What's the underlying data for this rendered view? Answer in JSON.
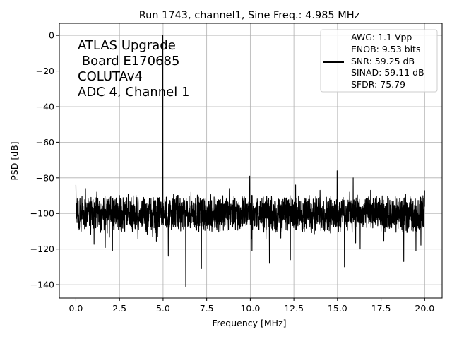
{
  "chart_data": {
    "type": "line",
    "title": "Run 1743, channel1, Sine Freq.: 4.985 MHz",
    "xlabel": "Frequency [MHz]",
    "ylabel": "PSD [dB]",
    "xlim": [
      -0.95,
      21.0
    ],
    "ylim": [
      -147.5,
      6.8
    ],
    "xticks": [
      0.0,
      2.5,
      5.0,
      7.5,
      10.0,
      12.5,
      15.0,
      17.5,
      20.0
    ],
    "xtick_labels": [
      "0.0",
      "2.5",
      "5.0",
      "7.5",
      "10.0",
      "12.5",
      "15.0",
      "17.5",
      "20.0"
    ],
    "yticks": [
      0,
      -20,
      -40,
      -60,
      -80,
      -100,
      -120,
      -140
    ],
    "ytick_labels": [
      "0",
      "−20",
      "−40",
      "−60",
      "−80",
      "−100",
      "−120",
      "−140"
    ],
    "grid": true,
    "legend_position": "upper-right",
    "series_color": "#000000",
    "annotation_lines": [
      "ATLAS Upgrade",
      " Board E170685",
      "COLUTAv4",
      "ADC 4, Channel 1"
    ],
    "legend_lines": [
      "AWG: 1.1 Vpp",
      "ENOB: 9.53 bits",
      "SNR: 59.25 dB",
      "SINAD: 59.11 dB",
      "SFDR: 75.79"
    ],
    "noise_floor_db": -100,
    "peaks": [
      {
        "x": 0.0,
        "y": -84
      },
      {
        "x": 0.3,
        "y": -110
      },
      {
        "x": 0.55,
        "y": -86
      },
      {
        "x": 0.85,
        "y": -112
      },
      {
        "x": 1.2,
        "y": -88
      },
      {
        "x": 1.8,
        "y": -111
      },
      {
        "x": 2.1,
        "y": -121
      },
      {
        "x": 2.5,
        "y": -90
      },
      {
        "x": 2.8,
        "y": -110
      },
      {
        "x": 3.0,
        "y": -89
      },
      {
        "x": 3.5,
        "y": -91
      },
      {
        "x": 4.0,
        "y": -109
      },
      {
        "x": 4.4,
        "y": -113
      },
      {
        "x": 4.985,
        "y": 0
      },
      {
        "x": 5.05,
        "y": -102
      },
      {
        "x": 5.3,
        "y": -124
      },
      {
        "x": 5.6,
        "y": -89
      },
      {
        "x": 6.3,
        "y": -141
      },
      {
        "x": 6.6,
        "y": -88
      },
      {
        "x": 7.2,
        "y": -131
      },
      {
        "x": 7.8,
        "y": -110
      },
      {
        "x": 8.8,
        "y": -86
      },
      {
        "x": 9.4,
        "y": -108
      },
      {
        "x": 9.97,
        "y": -79
      },
      {
        "x": 10.1,
        "y": -121
      },
      {
        "x": 11.1,
        "y": -128
      },
      {
        "x": 12.3,
        "y": -126
      },
      {
        "x": 12.6,
        "y": -84
      },
      {
        "x": 13.1,
        "y": -110
      },
      {
        "x": 14.0,
        "y": -87
      },
      {
        "x": 14.6,
        "y": -111
      },
      {
        "x": 14.98,
        "y": -76
      },
      {
        "x": 15.1,
        "y": -107
      },
      {
        "x": 15.4,
        "y": -130
      },
      {
        "x": 15.7,
        "y": -88
      },
      {
        "x": 15.9,
        "y": -80
      },
      {
        "x": 16.3,
        "y": -120
      },
      {
        "x": 16.9,
        "y": -87
      },
      {
        "x": 17.5,
        "y": -110
      },
      {
        "x": 18.1,
        "y": -107
      },
      {
        "x": 18.8,
        "y": -127
      },
      {
        "x": 19.5,
        "y": -121
      },
      {
        "x": 19.9,
        "y": -90
      },
      {
        "x": 20.0,
        "y": -87
      }
    ]
  }
}
